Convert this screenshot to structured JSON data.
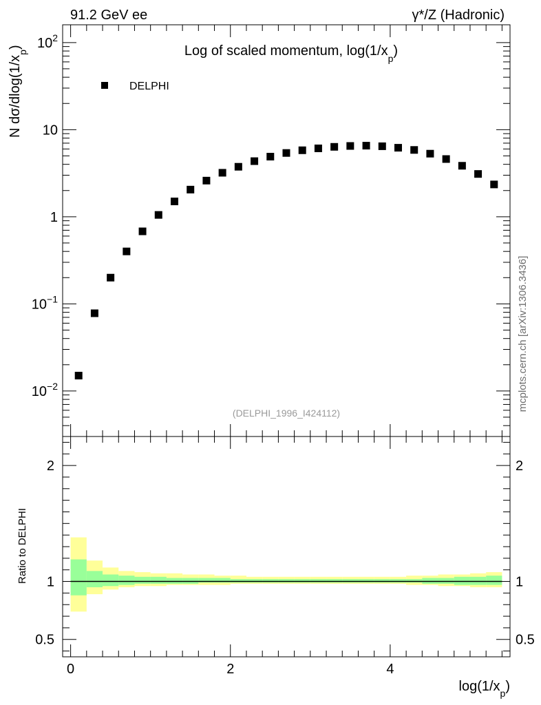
{
  "header": {
    "left": "91.2 GeV ee",
    "right": "γ*/Z (Hadronic)"
  },
  "side_note": "mcplots.cern.ch [arXiv:1306.3436]",
  "chart_data": [
    {
      "type": "scatter",
      "title": "Log of scaled momentum, log(1/x",
      "title_sub": "p",
      "title_close": ")",
      "ylabel_prefix": "N  dσ/dlog(1/x",
      "ylabel_sub": "p",
      "ylabel_close": ")",
      "yscale": "log",
      "ylim": [
        0.003,
        160
      ],
      "xlim": [
        -0.1,
        5.5
      ],
      "ytick_labels": [
        {
          "value": 0.01,
          "base": "10",
          "exp": "−2"
        },
        {
          "value": 0.1,
          "base": "10",
          "exp": "−1"
        },
        {
          "value": 1,
          "base": "1",
          "exp": ""
        },
        {
          "value": 10,
          "base": "10",
          "exp": ""
        },
        {
          "value": 100,
          "base": "10",
          "exp": "2"
        }
      ],
      "legend": {
        "label": "DELPHI",
        "position": "top-left"
      },
      "series": [
        {
          "name": "DELPHI",
          "x": [
            0.1,
            0.3,
            0.5,
            0.7,
            0.9,
            1.1,
            1.3,
            1.5,
            1.7,
            1.9,
            2.1,
            2.3,
            2.5,
            2.7,
            2.9,
            3.1,
            3.3,
            3.5,
            3.7,
            3.9,
            4.1,
            4.3,
            4.5,
            4.7,
            4.9,
            5.1,
            5.3
          ],
          "y": [
            0.015,
            0.078,
            0.2,
            0.4,
            0.68,
            1.05,
            1.5,
            2.05,
            2.6,
            3.2,
            3.75,
            4.35,
            4.9,
            5.4,
            5.8,
            6.1,
            6.35,
            6.5,
            6.55,
            6.45,
            6.2,
            5.85,
            5.3,
            4.6,
            3.85,
            3.1,
            2.35
          ]
        }
      ],
      "annotation": "(DELPHI_1996_I424112)"
    },
    {
      "type": "area",
      "ylabel": "Ratio to DELPHI",
      "xlabel_prefix": "log(1/x",
      "xlabel_sub": "p",
      "xlabel_close": ")",
      "xlim": [
        -0.1,
        5.5
      ],
      "ylim": [
        0.35,
        2.25
      ],
      "xticks": [
        0,
        2,
        4
      ],
      "xtick_labels": [
        "0",
        "2",
        "4"
      ],
      "yticks": [
        0.5,
        1,
        2
      ],
      "ytick_labels": [
        "0.5",
        "1",
        "2"
      ],
      "reference_line": 1,
      "bin_edges": [
        0.0,
        0.2,
        0.4,
        0.6,
        0.8,
        1.0,
        1.2,
        1.4,
        1.6,
        1.8,
        2.0,
        2.2,
        2.4,
        2.6,
        2.8,
        3.0,
        3.2,
        3.4,
        3.6,
        3.8,
        4.0,
        4.2,
        4.4,
        4.6,
        4.8,
        5.0,
        5.2,
        5.4
      ],
      "bands": [
        {
          "name": "total uncertainty",
          "color": "#ffff99",
          "upper": [
            1.38,
            1.18,
            1.12,
            1.09,
            1.08,
            1.07,
            1.07,
            1.06,
            1.06,
            1.05,
            1.05,
            1.04,
            1.04,
            1.04,
            1.04,
            1.04,
            1.04,
            1.04,
            1.04,
            1.04,
            1.04,
            1.05,
            1.05,
            1.06,
            1.06,
            1.07,
            1.08
          ],
          "lower": [
            0.74,
            0.89,
            0.93,
            0.95,
            0.96,
            0.96,
            0.97,
            0.97,
            0.97,
            0.97,
            0.98,
            0.98,
            0.98,
            0.98,
            0.98,
            0.98,
            0.98,
            0.98,
            0.98,
            0.98,
            0.98,
            0.97,
            0.97,
            0.96,
            0.96,
            0.95,
            0.95
          ]
        },
        {
          "name": "statistical uncertainty",
          "color": "#99ff99",
          "upper": [
            1.19,
            1.09,
            1.06,
            1.05,
            1.04,
            1.04,
            1.03,
            1.03,
            1.03,
            1.03,
            1.02,
            1.02,
            1.02,
            1.02,
            1.02,
            1.02,
            1.02,
            1.02,
            1.02,
            1.02,
            1.02,
            1.02,
            1.03,
            1.03,
            1.04,
            1.04,
            1.05
          ],
          "lower": [
            0.88,
            0.95,
            0.96,
            0.97,
            0.98,
            0.98,
            0.98,
            0.98,
            0.99,
            0.99,
            0.99,
            0.99,
            0.99,
            0.99,
            0.99,
            0.99,
            0.99,
            0.99,
            0.99,
            0.99,
            0.99,
            0.99,
            0.98,
            0.98,
            0.97,
            0.97,
            0.97
          ]
        }
      ]
    }
  ]
}
